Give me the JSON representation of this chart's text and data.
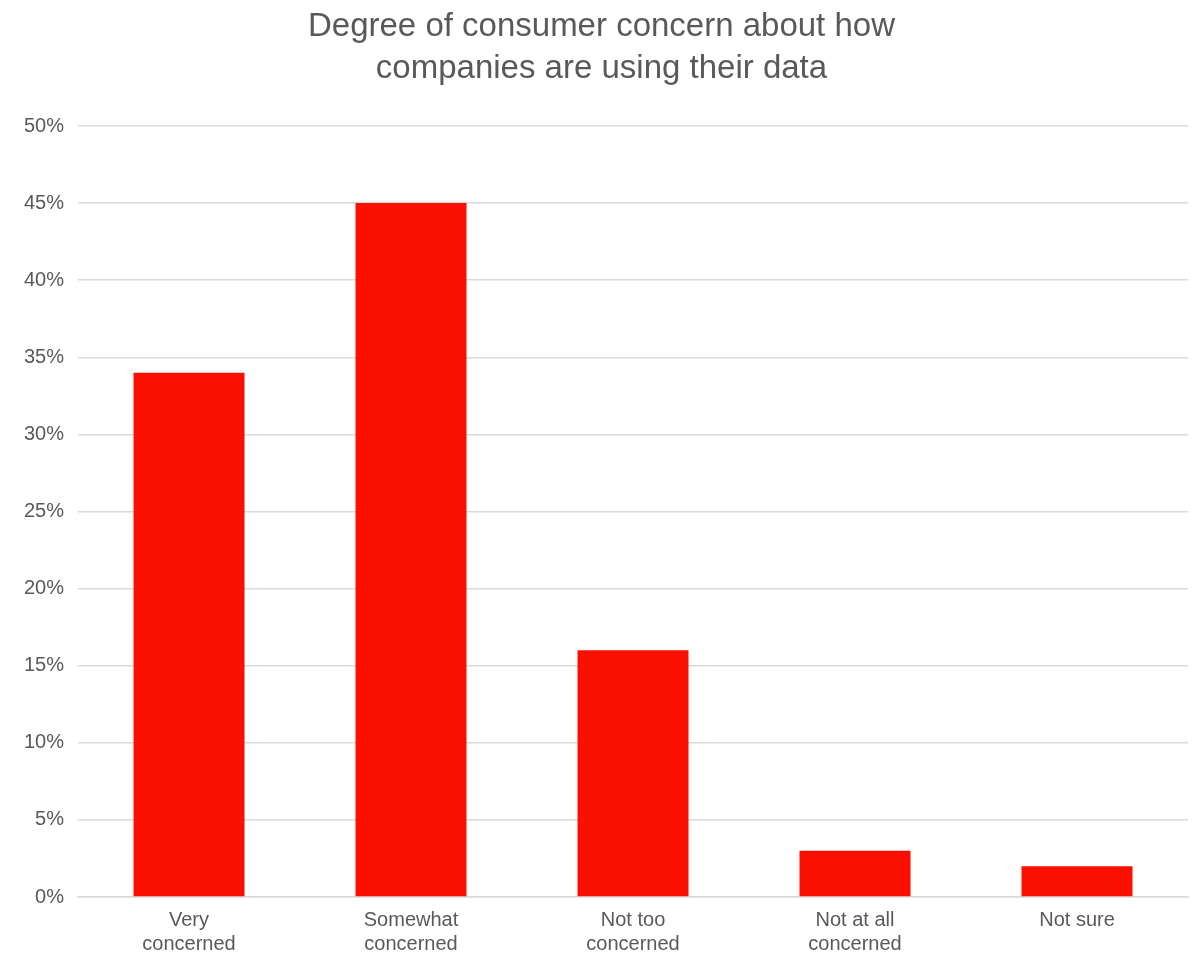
{
  "chart_data": {
    "type": "bar",
    "title": "Degree of consumer concern about how companies are using their data",
    "categories": [
      "Very concerned",
      "Somewhat concerned",
      "Not too concerned",
      "Not at all concerned",
      "Not sure"
    ],
    "values": [
      34,
      45,
      16,
      3,
      2
    ],
    "color": "#fa0f00",
    "ylim": [
      0,
      50
    ],
    "yticks": [
      {
        "value": 0,
        "label": "0%"
      },
      {
        "value": 5,
        "label": "5%"
      },
      {
        "value": 10,
        "label": "10%"
      },
      {
        "value": 15,
        "label": "15%"
      },
      {
        "value": 20,
        "label": "20%"
      },
      {
        "value": 25,
        "label": "25%"
      },
      {
        "value": 30,
        "label": "30%"
      },
      {
        "value": 35,
        "label": "35%"
      },
      {
        "value": 40,
        "label": "40%"
      },
      {
        "value": 45,
        "label": "45%"
      },
      {
        "value": 50,
        "label": "50%"
      }
    ],
    "grid": true,
    "legend": false
  }
}
